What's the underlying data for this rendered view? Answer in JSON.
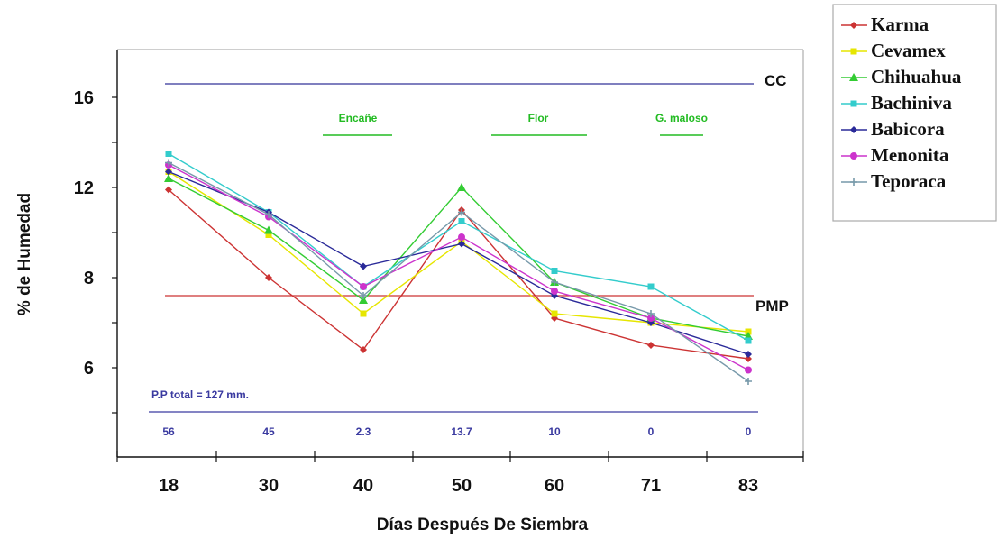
{
  "chart_data": {
    "type": "line",
    "xlabel": "Días   Después   De  Siembra",
    "ylabel": "% de Humedad",
    "categories": [
      "18",
      "30",
      "40",
      "50",
      "60",
      "71",
      "83"
    ],
    "yticks": [
      "16",
      "12",
      "8",
      "6"
    ],
    "grid": false,
    "legend_position": "right",
    "series": [
      {
        "name": "Karma",
        "color": "#cc3333",
        "values": [
          11.9,
          8.0,
          6.4,
          11.0,
          7.1,
          6.5,
          6.2
        ]
      },
      {
        "name": "Cevamex",
        "color": "#e6e600",
        "values": [
          12.7,
          9.9,
          7.2,
          9.6,
          7.2,
          7.0,
          6.8
        ]
      },
      {
        "name": "Chihuahua",
        "color": "#33cc33",
        "values": [
          12.4,
          10.1,
          7.5,
          12.0,
          7.9,
          7.1,
          6.7
        ]
      },
      {
        "name": "Bachiniva",
        "color": "#33cccc",
        "values": [
          13.5,
          10.9,
          7.8,
          10.5,
          8.3,
          7.8,
          6.6
        ]
      },
      {
        "name": "Babicora",
        "color": "#2a2a99",
        "values": [
          12.7,
          10.9,
          8.5,
          9.5,
          7.6,
          7.0,
          6.3
        ]
      },
      {
        "name": "Menonita",
        "color": "#cc33cc",
        "values": [
          13.0,
          10.7,
          7.8,
          9.8,
          7.7,
          7.1,
          5.9
        ]
      },
      {
        "name": "Teporaca",
        "color": "#7799aa",
        "values": [
          13.1,
          10.8,
          7.6,
          10.9,
          7.9,
          7.2,
          5.4
        ]
      }
    ],
    "reference_lines": [
      {
        "label": "CC",
        "value": 16.6,
        "color": "#333399"
      },
      {
        "label": "PMP",
        "value": 7.6,
        "color": "#cc3333"
      }
    ],
    "stages": [
      {
        "label": "Encañe",
        "from": "40",
        "to": "40"
      },
      {
        "label": "Flor",
        "from": "60",
        "to": "60"
      },
      {
        "label": "G. maloso",
        "from": "71",
        "to": "71"
      }
    ],
    "precipitation": {
      "total_label": "P.P total = 127 mm.",
      "values": [
        "56",
        "45",
        "2.3",
        "13.7",
        "10",
        "0",
        "0"
      ]
    }
  }
}
